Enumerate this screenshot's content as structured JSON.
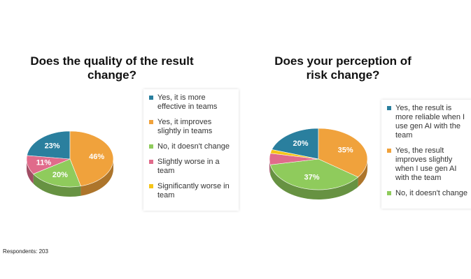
{
  "footer": "Respondents: 203",
  "chart_data": [
    {
      "type": "pie",
      "title": "Does the quality of the result change?",
      "categories": [
        "Yes, it is more effective in teams",
        "Yes, it improves slightly in teams",
        "No, it doesn't change",
        "Slightly worse in a team",
        "Significantly worse in team"
      ],
      "values": [
        23,
        46,
        20,
        11,
        0
      ],
      "value_labels": [
        "23%",
        "46%",
        "20%",
        "11%",
        null
      ],
      "colors": [
        "#2a7f9e",
        "#f0a23c",
        "#8fcb5c",
        "#e06b8b",
        "#f5c518"
      ]
    },
    {
      "type": "pie",
      "title": "Does your perception of risk change?",
      "categories": [
        "Yes, the result is more reliable when I use gen AI with the team",
        "Yes, the result improves slightly when I use gen AI with the team",
        "No, it doesn't change",
        null,
        null
      ],
      "values": [
        20,
        35,
        37,
        6,
        2
      ],
      "value_labels": [
        "20%",
        "35%",
        "37%",
        null,
        null
      ],
      "colors": [
        "#2a7f9e",
        "#f0a23c",
        "#8fcb5c",
        "#e06b8b",
        "#f5c518"
      ]
    }
  ]
}
